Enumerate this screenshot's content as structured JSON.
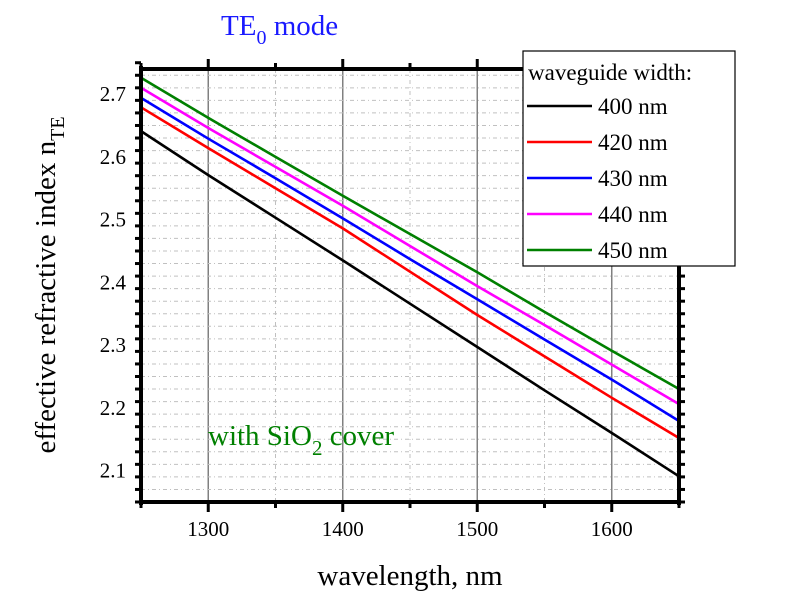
{
  "chart_data": {
    "type": "line",
    "title": "TE",
    "title_subscript": "0",
    "title_suffix": " mode",
    "xlabel": "wavelength, nm",
    "ylabel_main": "effective refractive index n",
    "ylabel_subscript": "TE",
    "annotation": {
      "prefix": "with SiO",
      "subscript": "2",
      "suffix": " cover"
    },
    "xlim": [
      1250,
      1650
    ],
    "ylim": [
      2.05,
      2.74
    ],
    "x_ticks": [
      1300,
      1400,
      1500,
      1600
    ],
    "x_tick_labels": [
      "1300",
      "1400",
      "1500",
      "1600"
    ],
    "x_minor_step": 50,
    "y_ticks": [
      2.1,
      2.2,
      2.3,
      2.4,
      2.5,
      2.6,
      2.7
    ],
    "y_tick_labels": [
      "2.1",
      "2.2",
      "2.3",
      "2.4",
      "2.5",
      "2.6",
      "2.7"
    ],
    "y_minor_step": 0.02,
    "grid": true,
    "legend_title": "waveguide width:",
    "legend_position": "top-right",
    "x": [
      1250,
      1300,
      1350,
      1400,
      1450,
      1500,
      1550,
      1600,
      1650
    ],
    "series": [
      {
        "name": "400 nm",
        "color": "#000000",
        "values": [
          2.641,
          2.571,
          2.503,
          2.435,
          2.366,
          2.297,
          2.228,
          2.16,
          2.091
        ]
      },
      {
        "name": "420 nm",
        "color": "#ff0000",
        "values": [
          2.679,
          2.614,
          2.55,
          2.486,
          2.417,
          2.348,
          2.282,
          2.216,
          2.152
        ]
      },
      {
        "name": "430 nm",
        "color": "#0000ff",
        "values": [
          2.694,
          2.629,
          2.566,
          2.502,
          2.437,
          2.373,
          2.309,
          2.245,
          2.179
        ]
      },
      {
        "name": "440 nm",
        "color": "#ff00ff",
        "values": [
          2.71,
          2.646,
          2.584,
          2.522,
          2.458,
          2.394,
          2.332,
          2.269,
          2.206
        ]
      },
      {
        "name": "450 nm",
        "color": "#008000",
        "values": [
          2.726,
          2.662,
          2.6,
          2.538,
          2.477,
          2.416,
          2.353,
          2.291,
          2.23
        ]
      }
    ]
  }
}
